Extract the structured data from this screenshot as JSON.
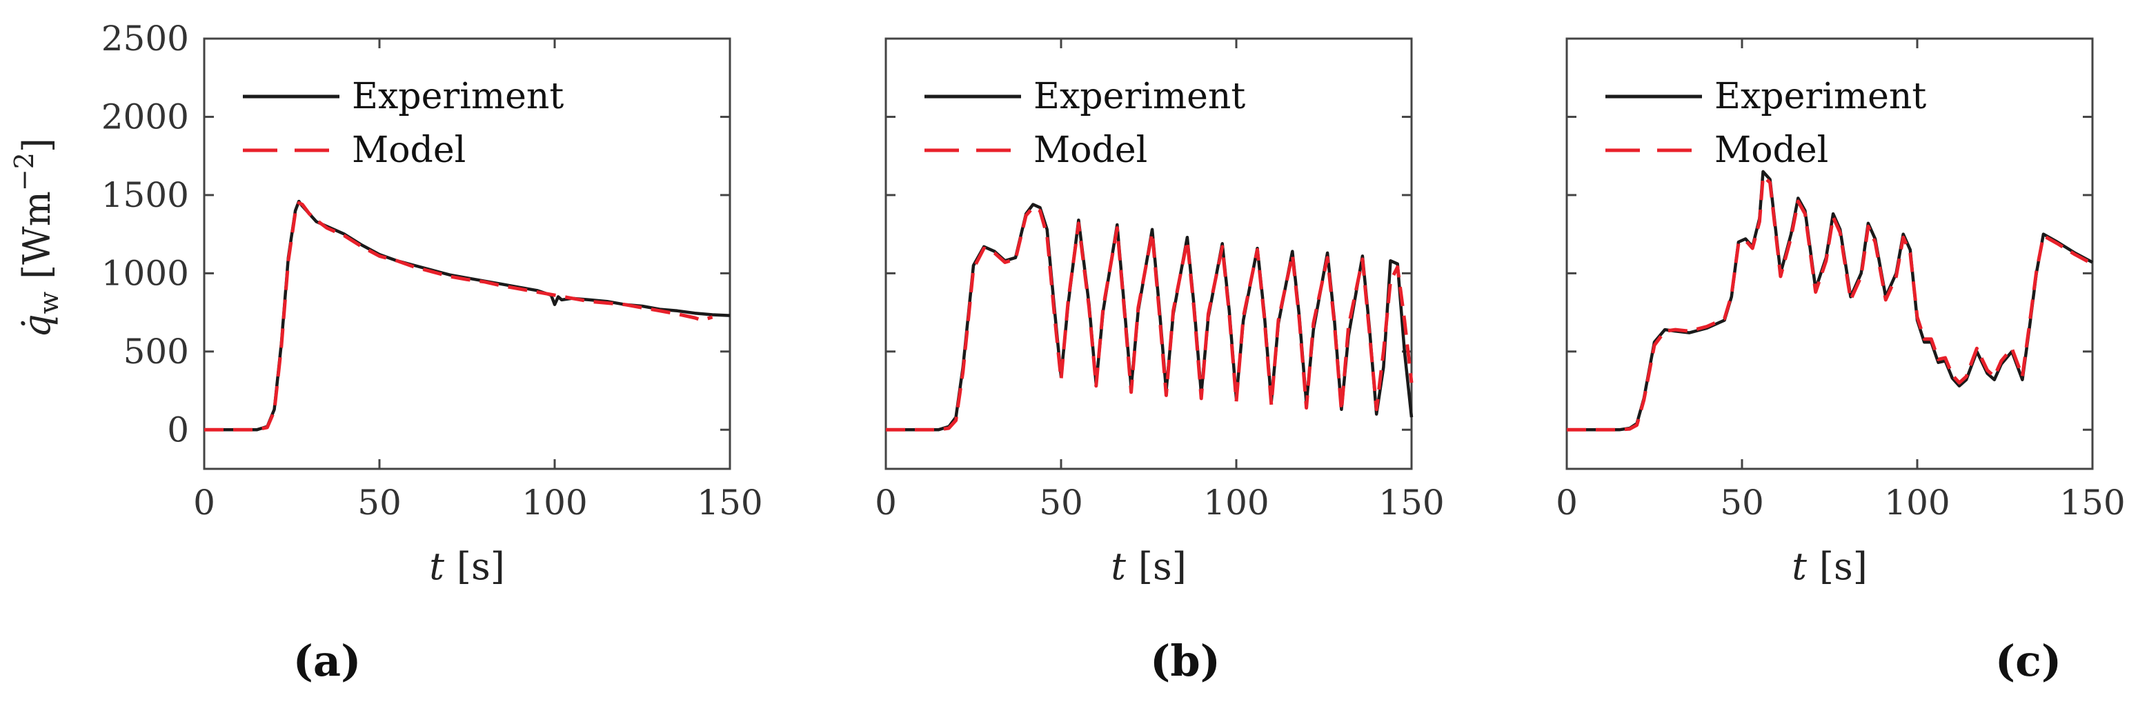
{
  "chart_data": [
    {
      "type": "line",
      "panel": "(a)",
      "xlabel_var": "t",
      "xlabel_unit": "[s]",
      "ylabel_var": "q̇",
      "ylabel_sub": "w",
      "ylabel_unit": "[Wm",
      "ylabel_exp": "−2",
      "ylabel_close": "]",
      "xlim": [
        0,
        150
      ],
      "ylim": [
        -250,
        2500
      ],
      "xticks": [
        0,
        50,
        100,
        150
      ],
      "yticks": [
        0,
        500,
        1000,
        1500,
        2000,
        2500
      ],
      "legend": {
        "location": "top-left",
        "entries": [
          "Experiment",
          "Model"
        ]
      },
      "series": [
        {
          "name": "Experiment",
          "color": "#1a1a1a",
          "style": "solid",
          "x": [
            0,
            5,
            10,
            15,
            18,
            20,
            22,
            24,
            26,
            27,
            28,
            30,
            32,
            35,
            40,
            45,
            50,
            55,
            60,
            65,
            70,
            75,
            80,
            85,
            90,
            95,
            99,
            100,
            101,
            102,
            105,
            110,
            115,
            120,
            125,
            130,
            135,
            140,
            145,
            150
          ],
          "values": [
            0,
            0,
            0,
            0,
            20,
            130,
            550,
            1100,
            1400,
            1460,
            1430,
            1380,
            1330,
            1300,
            1250,
            1180,
            1120,
            1080,
            1050,
            1020,
            990,
            970,
            950,
            930,
            910,
            890,
            860,
            800,
            850,
            830,
            840,
            830,
            820,
            800,
            790,
            770,
            760,
            745,
            735,
            730
          ]
        },
        {
          "name": "Model",
          "color": "#e8202a",
          "style": "dashed",
          "x": [
            0,
            5,
            10,
            15,
            18,
            20,
            22,
            24,
            26,
            27,
            28,
            30,
            32,
            35,
            40,
            45,
            50,
            55,
            60,
            65,
            70,
            75,
            80,
            85,
            90,
            95,
            100,
            105,
            110,
            115,
            120,
            125,
            130,
            135,
            140,
            142,
            145
          ],
          "values": [
            0,
            0,
            0,
            0,
            15,
            120,
            530,
            1080,
            1390,
            1450,
            1440,
            1380,
            1340,
            1290,
            1240,
            1170,
            1110,
            1080,
            1040,
            1010,
            980,
            960,
            945,
            920,
            900,
            880,
            860,
            840,
            820,
            810,
            800,
            780,
            760,
            740,
            715,
            700,
            720
          ]
        }
      ]
    },
    {
      "type": "line",
      "panel": "(b)",
      "xlabel_var": "t",
      "xlabel_unit": "[s]",
      "xlim": [
        0,
        150
      ],
      "ylim": [
        -250,
        2500
      ],
      "xticks": [
        0,
        50,
        100,
        150
      ],
      "yticks": [
        0,
        500,
        1000,
        1500,
        2000,
        2500
      ],
      "legend": {
        "location": "top-left",
        "entries": [
          "Experiment",
          "Model"
        ]
      },
      "series": [
        {
          "name": "Experiment",
          "color": "#1a1a1a",
          "style": "solid",
          "x": [
            0,
            5,
            10,
            15,
            18,
            20,
            22,
            25,
            28,
            31,
            34,
            37,
            40,
            42,
            44,
            46,
            48,
            50,
            52,
            55,
            58,
            60,
            62,
            66,
            68,
            70,
            72,
            76,
            78,
            80,
            82,
            86,
            88,
            90,
            92,
            96,
            98,
            100,
            102,
            106,
            108,
            110,
            112,
            116,
            118,
            120,
            122,
            126,
            128,
            130,
            132,
            136,
            138,
            140,
            142,
            144,
            146,
            148,
            150
          ],
          "values": [
            0,
            0,
            0,
            0,
            20,
            80,
            400,
            1050,
            1170,
            1140,
            1080,
            1100,
            1380,
            1440,
            1420,
            1280,
            800,
            340,
            800,
            1340,
            800,
            290,
            760,
            1310,
            800,
            270,
            760,
            1280,
            790,
            250,
            740,
            1230,
            780,
            230,
            720,
            1190,
            760,
            200,
            700,
            1160,
            740,
            180,
            680,
            1140,
            720,
            170,
            640,
            1130,
            700,
            130,
            600,
            1110,
            650,
            100,
            400,
            1080,
            1060,
            500,
            80
          ]
        },
        {
          "name": "Model",
          "color": "#e8202a",
          "style": "dashed",
          "x": [
            0,
            5,
            10,
            15,
            18,
            20,
            22,
            25,
            28,
            31,
            34,
            37,
            40,
            42,
            44,
            46,
            48,
            50,
            52,
            55,
            58,
            60,
            62,
            66,
            68,
            70,
            72,
            76,
            78,
            80,
            82,
            86,
            88,
            90,
            92,
            96,
            98,
            100,
            102,
            106,
            108,
            110,
            112,
            116,
            118,
            120,
            122,
            126,
            128,
            130,
            132,
            136,
            138,
            140,
            142,
            144,
            146,
            148,
            150
          ],
          "values": [
            0,
            0,
            0,
            0,
            10,
            60,
            370,
            1030,
            1160,
            1130,
            1070,
            1090,
            1370,
            1420,
            1400,
            1240,
            760,
            320,
            820,
            1320,
            780,
            280,
            780,
            1290,
            780,
            240,
            780,
            1260,
            760,
            220,
            760,
            1210,
            760,
            200,
            740,
            1170,
            740,
            180,
            720,
            1150,
            720,
            160,
            700,
            1120,
            700,
            140,
            680,
            1100,
            680,
            120,
            660,
            1090,
            620,
            130,
            500,
            950,
            1040,
            700,
            300
          ]
        }
      ]
    },
    {
      "type": "line",
      "panel": "(c)",
      "xlabel_var": "t",
      "xlabel_unit": "[s]",
      "xlim": [
        0,
        150
      ],
      "ylim": [
        -250,
        2500
      ],
      "xticks": [
        0,
        50,
        100,
        150
      ],
      "yticks": [
        0,
        500,
        1000,
        1500,
        2000,
        2500
      ],
      "legend": {
        "location": "top-left",
        "entries": [
          "Experiment",
          "Model"
        ]
      },
      "series": [
        {
          "name": "Experiment",
          "color": "#1a1a1a",
          "style": "solid",
          "x": [
            0,
            5,
            10,
            15,
            18,
            20,
            22,
            25,
            28,
            31,
            35,
            40,
            45,
            47,
            49,
            51,
            53,
            55,
            56,
            58,
            61,
            64,
            66,
            68,
            71,
            74,
            76,
            78,
            81,
            84,
            86,
            88,
            91,
            94,
            96,
            98,
            100,
            102,
            104,
            106,
            108,
            110,
            112,
            114,
            117,
            120,
            122,
            124,
            127,
            130,
            132,
            134,
            136,
            140,
            145,
            150
          ],
          "values": [
            0,
            0,
            0,
            0,
            10,
            40,
            200,
            560,
            640,
            630,
            620,
            650,
            700,
            850,
            1200,
            1220,
            1170,
            1350,
            1650,
            1600,
            1000,
            1250,
            1480,
            1400,
            900,
            1100,
            1380,
            1280,
            850,
            1000,
            1320,
            1220,
            850,
            1000,
            1250,
            1150,
            700,
            560,
            560,
            430,
            440,
            330,
            280,
            320,
            500,
            360,
            320,
            420,
            500,
            320,
            650,
            1000,
            1250,
            1200,
            1130,
            1070
          ]
        },
        {
          "name": "Model",
          "color": "#e8202a",
          "style": "dashed",
          "x": [
            0,
            5,
            10,
            15,
            18,
            20,
            22,
            25,
            28,
            31,
            35,
            40,
            45,
            47,
            49,
            51,
            53,
            55,
            56,
            58,
            61,
            64,
            66,
            68,
            71,
            74,
            76,
            78,
            81,
            84,
            86,
            88,
            91,
            94,
            96,
            98,
            100,
            102,
            104,
            106,
            108,
            110,
            112,
            114,
            117,
            120,
            122,
            124,
            127,
            130,
            132,
            134,
            136,
            140,
            145,
            150
          ],
          "values": [
            0,
            0,
            0,
            0,
            5,
            30,
            190,
            540,
            630,
            640,
            630,
            660,
            710,
            860,
            1190,
            1210,
            1160,
            1330,
            1620,
            1580,
            980,
            1230,
            1460,
            1380,
            880,
            1080,
            1360,
            1260,
            830,
            980,
            1300,
            1200,
            830,
            980,
            1230,
            1130,
            720,
            580,
            580,
            450,
            460,
            350,
            300,
            340,
            520,
            380,
            340,
            440,
            520,
            340,
            670,
            1010,
            1240,
            1190,
            1120,
            1060
          ]
        }
      ]
    }
  ]
}
